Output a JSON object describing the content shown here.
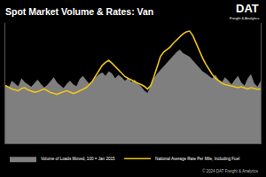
{
  "chart_data": {
    "type": "line",
    "title": "Spot Market Volume & Rates: Van",
    "logo": "DAT",
    "logo_subtitle": "Freight & Analytics",
    "source": "© 2024 DAT Freight & Analytics",
    "categories": [
      null,
      null,
      null,
      null,
      null,
      null,
      null,
      null,
      null,
      null,
      null,
      null,
      null,
      null,
      null,
      null,
      null,
      null,
      null,
      null,
      null,
      null,
      null,
      null,
      null,
      null,
      null,
      null,
      null,
      null,
      null,
      null,
      null,
      null,
      null,
      null,
      null,
      null,
      null,
      null,
      null,
      null,
      null,
      null,
      null,
      null,
      null,
      null,
      null,
      null,
      null,
      null,
      null,
      null,
      null,
      null,
      null,
      null,
      null,
      null,
      null,
      null,
      null,
      null,
      null,
      null,
      null,
      null,
      null,
      null,
      null,
      null,
      null,
      null,
      null,
      null,
      null,
      null,
      null,
      null
    ],
    "series": [
      {
        "name": "Volume of Loads Moved, 100 = Jan 2015",
        "type": "area",
        "color": "#7f7f7f",
        "values": [
          96,
          92,
          104,
          100,
          95,
          108,
          102,
          98,
          94,
          100,
          106,
          99,
          93,
          97,
          103,
          110,
          101,
          96,
          92,
          99,
          104,
          98,
          95,
          107,
          112,
          105,
          99,
          103,
          110,
          115,
          118,
          112,
          120,
          116,
          108,
          114,
          110,
          104,
          109,
          102,
          106,
          99,
          95,
          88,
          84,
          97,
          108,
          116,
          122,
          128,
          134,
          140,
          146,
          152,
          156,
          150,
          147,
          144,
          138,
          132,
          126,
          120,
          116,
          112,
          108,
          114,
          106,
          102,
          110,
          104,
          98,
          106,
          112,
          101,
          96,
          108,
          115,
          100,
          94,
          104
        ]
      },
      {
        "name": "National Average Rate Per Mile, Including Fuel",
        "type": "line",
        "color": "#f0c419",
        "axis": "y2",
        "values": [
          2.1,
          2.06,
          2.02,
          2.0,
          1.98,
          2.03,
          2.05,
          2.0,
          1.97,
          1.95,
          1.96,
          1.99,
          2.02,
          1.98,
          1.94,
          1.92,
          1.9,
          1.93,
          1.96,
          1.98,
          1.95,
          1.92,
          1.94,
          1.98,
          2.02,
          2.05,
          2.12,
          2.2,
          2.32,
          2.45,
          2.55,
          2.62,
          2.66,
          2.6,
          2.52,
          2.44,
          2.38,
          2.3,
          2.26,
          2.22,
          2.18,
          2.15,
          2.12,
          2.08,
          2.02,
          2.1,
          2.3,
          2.55,
          2.75,
          2.85,
          2.9,
          2.96,
          3.05,
          3.12,
          3.2,
          3.26,
          3.3,
          3.32,
          3.22,
          3.05,
          2.88,
          2.72,
          2.58,
          2.45,
          2.35,
          2.26,
          2.2,
          2.15,
          2.12,
          2.1,
          2.08,
          2.06,
          2.05,
          2.07,
          2.04,
          2.02,
          2.05,
          2.03,
          2.01,
          2.02
        ]
      }
    ],
    "ylim": [
      0,
      200
    ],
    "y2lim": [
      0.8,
      3.5
    ],
    "grid": false,
    "legend": "bottom",
    "tick_labels": false
  }
}
